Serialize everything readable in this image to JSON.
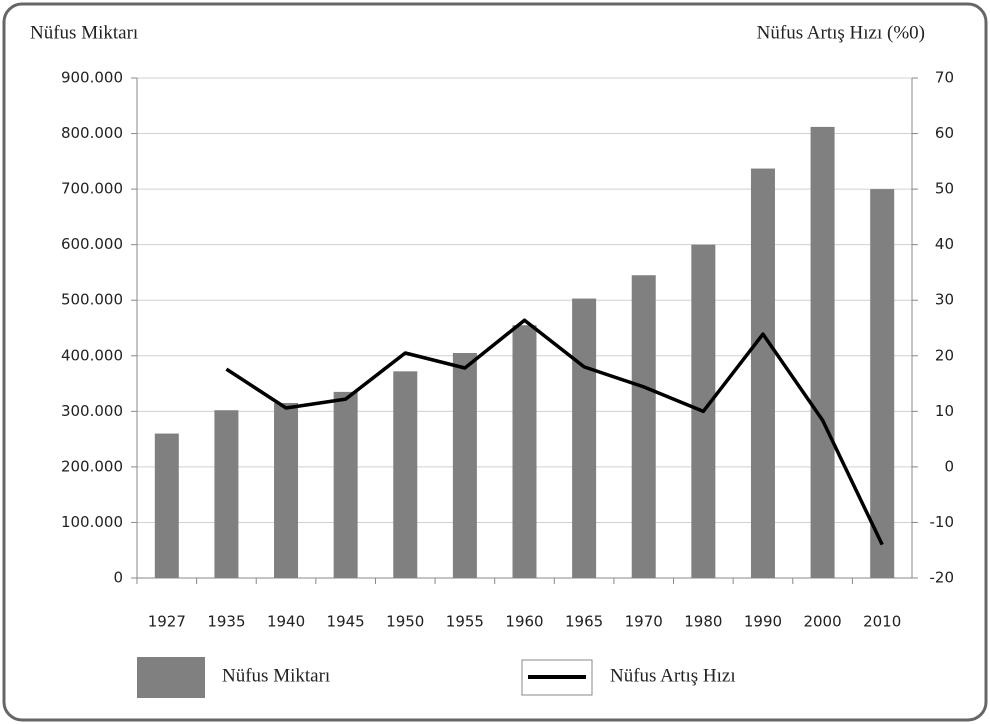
{
  "chart_data": {
    "type": "bar",
    "y_label": "Nüfus Miktarı",
    "y2_label": "Nüfus Artış Hızı (%0)",
    "categories": [
      "1927",
      "1935",
      "1940",
      "1945",
      "1950",
      "1955",
      "1960",
      "1965",
      "1970",
      "1980",
      "1990",
      "2000",
      "2010"
    ],
    "series": [
      {
        "name": "Nüfus Miktarı",
        "type": "bar",
        "color": "#808080",
        "values": [
          260000,
          302000,
          315000,
          335000,
          372000,
          405000,
          455000,
          503000,
          545000,
          600000,
          737000,
          812000,
          700000
        ]
      },
      {
        "name": "Nüfus Artış Hızı",
        "type": "line",
        "axis": "y2",
        "color": "#000000",
        "values": [
          null,
          17.6,
          10.6,
          12.2,
          20.5,
          17.8,
          26.4,
          18,
          14.4,
          10,
          23.9,
          8.4,
          -14
        ]
      }
    ],
    "ylim": [
      0,
      900000
    ],
    "yticks": [
      0,
      {
        "value": 100000,
        "label": "100.000"
      },
      {
        "value": 200000,
        "label": "200.000"
      },
      {
        "value": 300000,
        "label": "300.000"
      },
      {
        "value": 400000,
        "label": "400.000"
      },
      {
        "value": 500000,
        "label": "500.000"
      },
      {
        "value": 600000,
        "label": "600.000"
      },
      {
        "value": 700000,
        "label": "700.000"
      },
      {
        "value": 800000,
        "label": "800.000"
      },
      {
        "value": 900000,
        "label": "900.000"
      }
    ],
    "y2lim": [
      -20,
      70
    ],
    "y2ticks": [
      -20,
      -10,
      0,
      10,
      20,
      30,
      40,
      50,
      60,
      70
    ],
    "grid": true,
    "legend": "bottom"
  }
}
